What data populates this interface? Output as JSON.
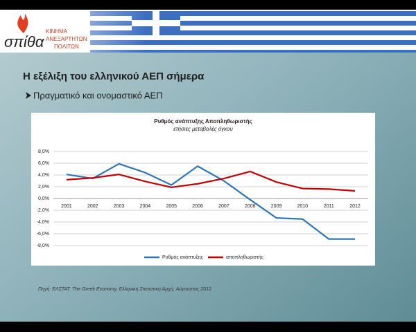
{
  "slide": {
    "logo_word": "σπίθα",
    "logo_lines": [
      "ΚΙΝΗΜΑ",
      "ΑΝΕΞΑΡΤΗΤΩΝ",
      "ΠΟΛΙΤΩΝ"
    ],
    "title": "Η εξέλιξη του ελληνικού ΑΕΠ σήμερα",
    "bullet": "Πραγματικό και ονομαστικό ΑΕΠ",
    "source": "Πηγή: ΕΛΣΤΑΤ. The Greek Economy. Ελληνική Στατιστική Αρχή. Αύγουστος 2012"
  },
  "chart_data": {
    "type": "line",
    "title": "Ρυθμός ανάπτυξης Αποπληθωριστής",
    "subtitle": "ετήσιες μεταβολές όγκου",
    "categories": [
      "2001",
      "2002",
      "2003",
      "2004",
      "2005",
      "2006",
      "2007",
      "2008",
      "2009",
      "2010",
      "2011",
      "2012"
    ],
    "series": [
      {
        "name": "Ρυθμός ανάπτυξης",
        "color": "#2e75b6",
        "values": [
          4.1,
          3.4,
          5.9,
          4.4,
          2.3,
          5.5,
          3.0,
          -0.2,
          -3.3,
          -3.5,
          -6.9,
          -6.9
        ]
      },
      {
        "name": "αποπληθωριστής",
        "color": "#c00000",
        "values": [
          3.2,
          3.5,
          4.1,
          2.9,
          1.9,
          2.5,
          3.4,
          4.6,
          2.8,
          1.7,
          1.6,
          1.3
        ]
      }
    ],
    "ylim": [
      -8,
      8
    ],
    "yticks": [
      {
        "value": -8,
        "label": "-8,0%"
      },
      {
        "value": -6,
        "label": "-6,0%"
      },
      {
        "value": -4,
        "label": "-4,0%"
      },
      {
        "value": -2,
        "label": "-2,0%"
      },
      {
        "value": 0,
        "label": "0,0%"
      },
      {
        "value": 2,
        "label": "2,0%"
      },
      {
        "value": 4,
        "label": "4,0%"
      },
      {
        "value": 6,
        "label": "6,0%"
      },
      {
        "value": 8,
        "label": "8,0%"
      }
    ],
    "grid": true,
    "legend": "bottom"
  }
}
